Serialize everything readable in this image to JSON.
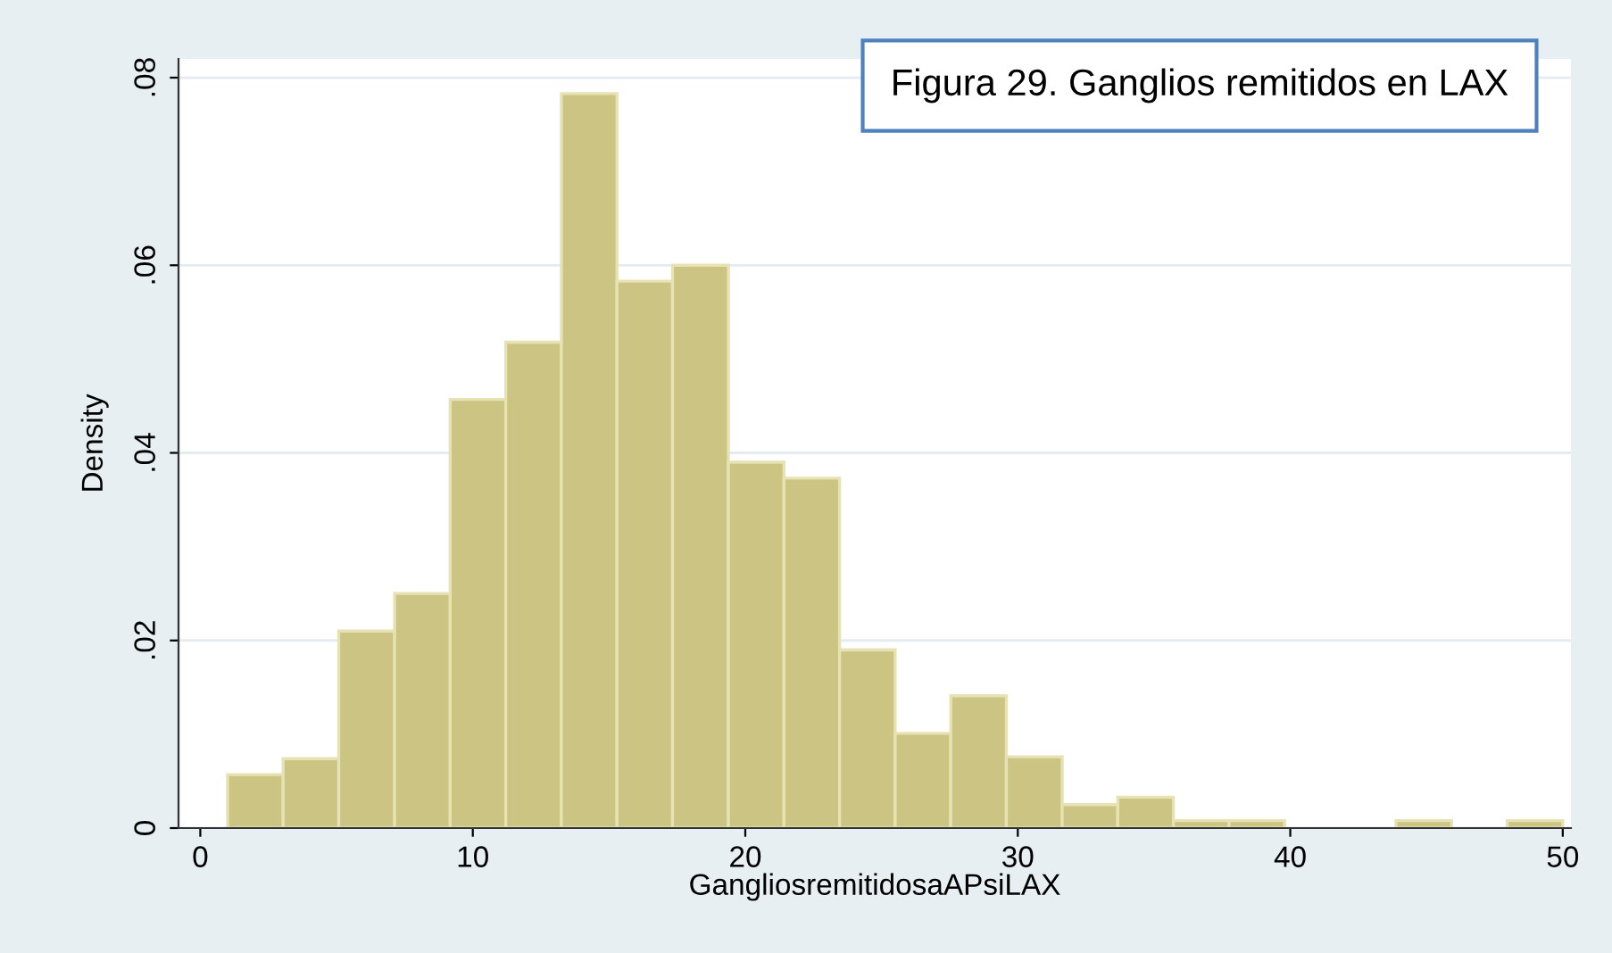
{
  "chart_data": {
    "type": "histogram",
    "title": "Figura 29. Ganglios remitidos en LAX",
    "xlabel": "GangliosremitidosaAPsiLAX",
    "ylabel": "Density",
    "bins": [
      1,
      3.04,
      5.08,
      7.13,
      9.17,
      11.21,
      13.25,
      15.29,
      17.33,
      19.38,
      21.42,
      23.46,
      25.5,
      27.54,
      29.58,
      31.63,
      33.67,
      35.71,
      37.75,
      39.79,
      41.83,
      43.88,
      45.92,
      47.96,
      50
    ],
    "values": [
      0.0057,
      0.0074,
      0.021,
      0.025,
      0.0457,
      0.0518,
      0.0783,
      0.0583,
      0.06,
      0.039,
      0.0373,
      0.019,
      0.0101,
      0.0141,
      0.0076,
      0.0025,
      0.0033,
      0.0008,
      0.0008,
      0,
      0,
      0.0008,
      0,
      0.0008
    ],
    "color": "#cbc482",
    "xlim": [
      -0.8,
      50.3
    ],
    "ylim": [
      0,
      0.082
    ],
    "xticks": [
      0,
      10,
      20,
      30,
      40,
      50
    ],
    "yticks": [
      0,
      {
        "value": 0.02,
        "label": ".02"
      },
      {
        "value": 0.04,
        "label": ".04"
      },
      {
        "value": 0.06,
        "label": ".06"
      },
      {
        "value": 0.08,
        "label": ".08"
      }
    ],
    "grid": "y"
  }
}
